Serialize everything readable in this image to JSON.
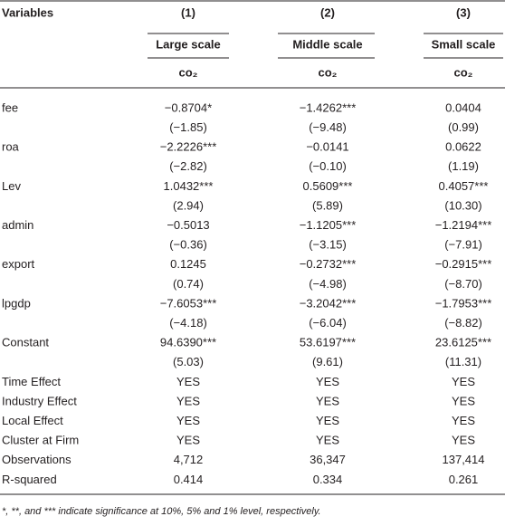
{
  "header": {
    "variables_label": "Variables",
    "columns": [
      {
        "number": "(1)",
        "name": "Large scale",
        "dependent": "co₂"
      },
      {
        "number": "(2)",
        "name": "Middle scale",
        "dependent": "co₂"
      },
      {
        "number": "(3)",
        "name": "Small scale",
        "dependent": "co₂"
      }
    ]
  },
  "rows": [
    {
      "label": "fee",
      "values": [
        "−0.8704*",
        "−1.4262***",
        "0.0404"
      ]
    },
    {
      "values": [
        "(−1.85)",
        "(−9.48)",
        "(0.99)"
      ]
    },
    {
      "label": "roa",
      "values": [
        "−2.2226***",
        "−0.0141",
        "0.0622"
      ]
    },
    {
      "values": [
        "(−2.82)",
        "(−0.10)",
        "(1.19)"
      ]
    },
    {
      "label": "Lev",
      "values": [
        "1.0432***",
        "0.5609***",
        "0.4057***"
      ]
    },
    {
      "values": [
        "(2.94)",
        "(5.89)",
        "(10.30)"
      ]
    },
    {
      "label": "admin",
      "values": [
        "−0.5013",
        "−1.1205***",
        "−1.2194***"
      ]
    },
    {
      "values": [
        "(−0.36)",
        "(−3.15)",
        "(−7.91)"
      ]
    },
    {
      "label": "export",
      "values": [
        "0.1245",
        "−0.2732***",
        "−0.2915***"
      ]
    },
    {
      "values": [
        "(0.74)",
        "(−4.98)",
        "(−8.70)"
      ]
    },
    {
      "label": "lpgdp",
      "values": [
        "−7.6053***",
        "−3.2042***",
        "−1.7953***"
      ]
    },
    {
      "values": [
        "(−4.18)",
        "(−6.04)",
        "(−8.82)"
      ]
    },
    {
      "label": "Constant",
      "values": [
        "94.6390***",
        "53.6197***",
        "23.6125***"
      ]
    },
    {
      "values": [
        "(5.03)",
        "(9.61)",
        "(11.31)"
      ]
    },
    {
      "label": "Time Effect",
      "values": [
        "YES",
        "YES",
        "YES"
      ]
    },
    {
      "label": "Industry Effect",
      "values": [
        "YES",
        "YES",
        "YES"
      ]
    },
    {
      "label": "Local Effect",
      "values": [
        "YES",
        "YES",
        "YES"
      ]
    },
    {
      "label": "Cluster at Firm",
      "values": [
        "YES",
        "YES",
        "YES"
      ]
    },
    {
      "label": "Observations",
      "values": [
        "4,712",
        "36,347",
        "137,414"
      ]
    },
    {
      "label": "R-squared",
      "values": [
        "0.414",
        "0.334",
        "0.261"
      ]
    }
  ],
  "footnote": "*, **, and *** indicate significance at 10%, 5% and 1% level, respectively."
}
